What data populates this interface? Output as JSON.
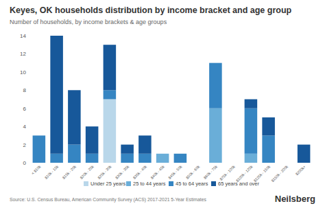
{
  "chart_data": {
    "type": "bar",
    "stacked": true,
    "grid": false,
    "legend": "bottom",
    "title": "Keyes, OK households distribution by income bracket and age group",
    "subtitle": "Number of households, by income brackets & age groups",
    "source": "Source: U.S. Census Bureau, American Community Survey (ACS) 2017-2021 5-Year Estimates",
    "brand": "Neilsberg",
    "categories": [
      "< $10k",
      "$10k - 15k",
      "$15k - 20k",
      "$20k - 25k",
      "$25k - 30k",
      "$30k - 35k",
      "$35k - 40k",
      "$40k - 45k",
      "$45k - 50k",
      "$50k - 60k",
      "$60k - 75k",
      "$75k - 100k",
      "$100k - 125k",
      "$125k - 150k",
      "$150k - 200k",
      "$200k+"
    ],
    "series": [
      {
        "name": "Under 25 years",
        "color": "#b9d7ea",
        "values": [
          0,
          0,
          0,
          0,
          7,
          0,
          0,
          0,
          0,
          0,
          0,
          0,
          0,
          0,
          0,
          0
        ]
      },
      {
        "name": "25 to 44 years",
        "color": "#6aaed8",
        "values": [
          0,
          0,
          0,
          0,
          0,
          0,
          0,
          1,
          0,
          0,
          6,
          0,
          1,
          0,
          0,
          0
        ]
      },
      {
        "name": "45 to 64 years",
        "color": "#3585c2",
        "values": [
          3,
          1,
          2,
          1,
          1,
          1,
          1,
          0,
          1,
          0,
          5,
          0,
          5,
          3,
          0,
          0
        ]
      },
      {
        "name": "65 years and over",
        "color": "#17589a",
        "values": [
          0,
          13,
          6,
          3,
          5,
          1,
          2,
          0,
          0,
          0,
          0,
          0,
          1,
          2,
          0,
          2
        ]
      }
    ],
    "ylim": [
      0,
      14
    ],
    "yticks": [
      0,
      2,
      4,
      6,
      8,
      10,
      12,
      14
    ]
  }
}
